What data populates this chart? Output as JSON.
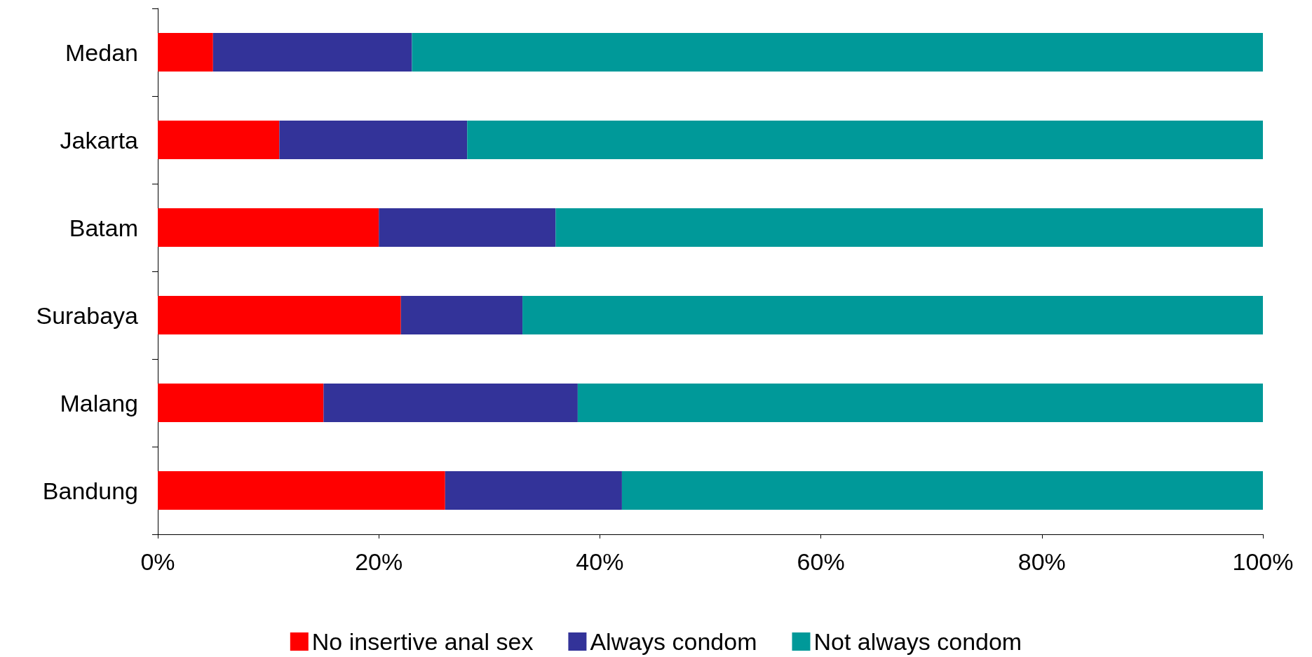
{
  "chart_data": {
    "type": "bar",
    "orientation": "horizontal",
    "stacked": true,
    "categories": [
      "Medan",
      "Jakarta",
      "Batam",
      "Surabaya",
      "Malang",
      "Bandung"
    ],
    "series": [
      {
        "name": "No insertive anal sex",
        "color": "#ff0000",
        "values": [
          5,
          11,
          20,
          22,
          15,
          26
        ]
      },
      {
        "name": "Always condom",
        "color": "#333399",
        "values": [
          18,
          17,
          16,
          11,
          23,
          16
        ]
      },
      {
        "name": "Not always condom",
        "color": "#009999",
        "values": [
          77,
          72,
          64,
          67,
          62,
          58
        ]
      }
    ],
    "xlim": [
      0,
      100
    ],
    "xticks": [
      {
        "value": 0,
        "label": "0%"
      },
      {
        "value": 20,
        "label": "20%"
      },
      {
        "value": 40,
        "label": "40%"
      },
      {
        "value": 60,
        "label": "60%"
      },
      {
        "value": 80,
        "label": "80%"
      },
      {
        "value": 100,
        "label": "100%"
      }
    ],
    "grid": false,
    "legend": "bottom"
  }
}
